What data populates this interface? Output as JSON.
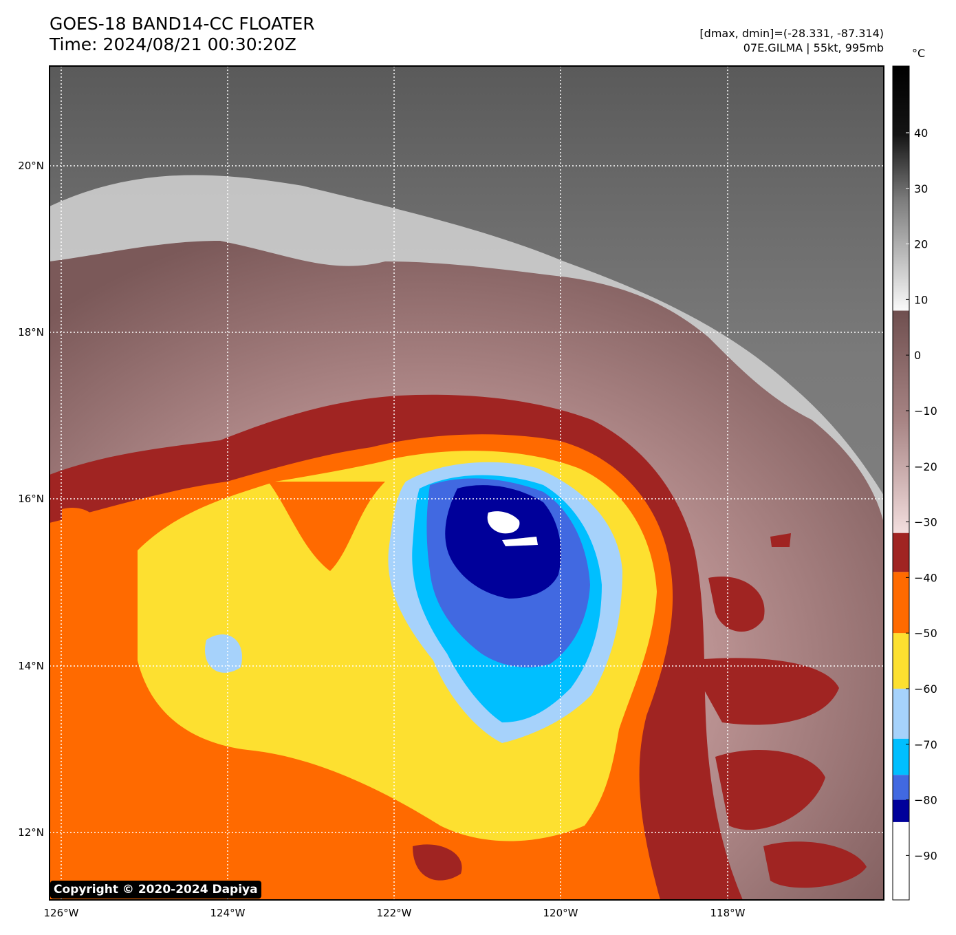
{
  "header": {
    "title_line1": "GOES-18 BAND14-CC FLOATER",
    "title_line2": "Time: 2024/08/21 00:30:20Z",
    "dmax_dmin": "[dmax, dmin]=(-28.331, -87.314)",
    "storm_info": "07E.GILMA | 55kt, 995mb"
  },
  "map": {
    "lon_labels": [
      "126°W",
      "124°W",
      "122°W",
      "120°W",
      "118°W"
    ],
    "lat_labels": [
      "20°N",
      "18°N",
      "16°N",
      "14°N",
      "12°N"
    ],
    "lon_range": [
      -126.1,
      -116.1
    ],
    "lat_range": [
      11.2,
      21.2
    ]
  },
  "colorbar": {
    "unit": "°C",
    "ticks": [
      "40",
      "30",
      "20",
      "10",
      "0",
      "−10",
      "−20",
      "−30",
      "−40",
      "−50",
      "−60",
      "−70",
      "−80",
      "−90"
    ],
    "tick_values": [
      40,
      30,
      20,
      10,
      0,
      -10,
      -20,
      -30,
      -40,
      -50,
      -60,
      -70,
      -80,
      -90
    ],
    "range": [
      -98,
      52
    ],
    "bands": [
      {
        "from": -98,
        "to": -84,
        "color": "#ffffff"
      },
      {
        "from": -84,
        "to": -80,
        "color": "#00009a"
      },
      {
        "from": -80,
        "to": -75.5,
        "color": "#4169e1"
      },
      {
        "from": -75.5,
        "to": -69,
        "color": "#00bfff"
      },
      {
        "from": -69,
        "to": -60,
        "color": "#a6d2fb"
      },
      {
        "from": -60,
        "to": -50,
        "color": "#fde030"
      },
      {
        "from": -50,
        "to": -39,
        "color": "#ff6a00"
      },
      {
        "from": -39,
        "to": -32,
        "color": "#a02422"
      }
    ]
  },
  "copyright": "Copyright © 2020-2024 Dapiya"
}
